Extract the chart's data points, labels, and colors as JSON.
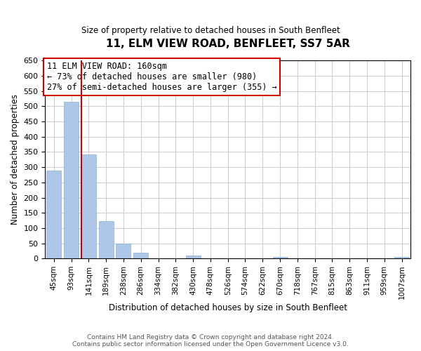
{
  "title": "11, ELM VIEW ROAD, BENFLEET, SS7 5AR",
  "subtitle": "Size of property relative to detached houses in South Benfleet",
  "xlabel": "Distribution of detached houses by size in South Benfleet",
  "ylabel": "Number of detached properties",
  "footer_line1": "Contains HM Land Registry data © Crown copyright and database right 2024.",
  "footer_line2": "Contains public sector information licensed under the Open Government Licence v3.0.",
  "annotation_line1": "11 ELM VIEW ROAD: 160sqm",
  "annotation_line2": "← 73% of detached houses are smaller (980)",
  "annotation_line3": "27% of semi-detached houses are larger (355) →",
  "bar_labels": [
    "45sqm",
    "93sqm",
    "141sqm",
    "189sqm",
    "238sqm",
    "286sqm",
    "334sqm",
    "382sqm",
    "430sqm",
    "478sqm",
    "526sqm",
    "574sqm",
    "622sqm",
    "670sqm",
    "718sqm",
    "767sqm",
    "815sqm",
    "863sqm",
    "911sqm",
    "959sqm",
    "1007sqm"
  ],
  "bar_values": [
    288,
    516,
    343,
    122,
    48,
    19,
    0,
    0,
    9,
    0,
    0,
    0,
    0,
    5,
    0,
    0,
    0,
    0,
    0,
    0,
    5
  ],
  "bar_color": "#aec6e8",
  "bar_edge_color": "#8ab0d8",
  "reference_line_color": "#cc0000",
  "ylim": [
    0,
    650
  ],
  "yticks": [
    0,
    50,
    100,
    150,
    200,
    250,
    300,
    350,
    400,
    450,
    500,
    550,
    600,
    650
  ],
  "box_color": "#cc0000",
  "background_color": "#ffffff",
  "grid_color": "#cccccc"
}
